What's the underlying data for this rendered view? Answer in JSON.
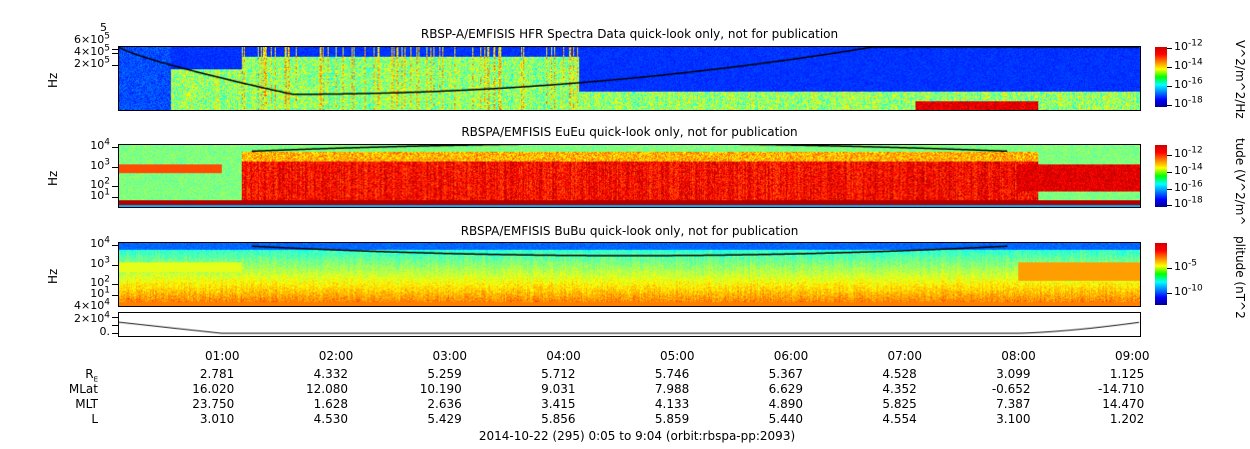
{
  "chart_data": [
    {
      "type": "heatmap",
      "title": "RBSP-A/EMFISIS  HFR Spectra Data quick-look only, not for publication",
      "ylabel": "Hz",
      "yticks": [
        "6×10^5",
        "4×10^5",
        "2×10^5"
      ],
      "ytop_label": "5",
      "colorbar_label": "V^2/m^2/Hz",
      "colorbar_ticks": [
        "10^-12",
        "10^-14",
        "10^-16",
        "10^-18"
      ],
      "colorscale": "jet",
      "curve": "black"
    },
    {
      "type": "heatmap",
      "title": "RBSPA/EMFISIS  EuEu quick-look only, not for publication",
      "ylabel": "Hz",
      "yticks": [
        "10^4",
        "10^3",
        "10^2",
        "10^1"
      ],
      "yscale": "log",
      "colorbar_label": "tude (V^2/m^",
      "colorbar_ticks": [
        "10^-12",
        "10^-14",
        "10^-16",
        "10^-18"
      ],
      "colorscale": "jet"
    },
    {
      "type": "heatmap",
      "title": "RBSPA/EMFISIS  BuBu quick-look only, not for publication",
      "ylabel": "Hz",
      "yticks": [
        "10^4",
        "10^3",
        "10^2",
        "10^1"
      ],
      "yscale": "log",
      "colorbar_label": "plitude (nT^2",
      "colorbar_ticks": [
        "10^-5",
        "10^-10"
      ],
      "colorscale": "jet"
    },
    {
      "type": "line",
      "yticks": [
        "4×10^4",
        "2×10^4",
        "0."
      ],
      "series_color": "#000000"
    }
  ],
  "xaxis": {
    "ticks": [
      "01:00",
      "02:00",
      "03:00",
      "04:00",
      "05:00",
      "06:00",
      "07:00",
      "08:00",
      "09:00"
    ]
  },
  "ephemeris": [
    {
      "label": "R",
      "sub": "E",
      "values": [
        "2.781",
        "4.332",
        "5.259",
        "5.712",
        "5.746",
        "5.367",
        "4.528",
        "3.099",
        "1.125"
      ]
    },
    {
      "label": "MLat",
      "values": [
        "16.020",
        "12.080",
        "10.190",
        "9.031",
        "7.988",
        "6.629",
        "4.352",
        "-0.652",
        "-14.710"
      ]
    },
    {
      "label": "MLT",
      "values": [
        "23.750",
        "1.628",
        "2.636",
        "3.415",
        "4.133",
        "4.890",
        "5.825",
        "7.387",
        "14.470"
      ]
    },
    {
      "label": "L",
      "values": [
        "3.010",
        "4.530",
        "5.429",
        "5.856",
        "5.859",
        "5.440",
        "4.554",
        "3.100",
        "1.202"
      ]
    }
  ],
  "footer": "2014-10-22 (295) 0:05 to 9:04 (orbit:rbspa-pp:2093)"
}
